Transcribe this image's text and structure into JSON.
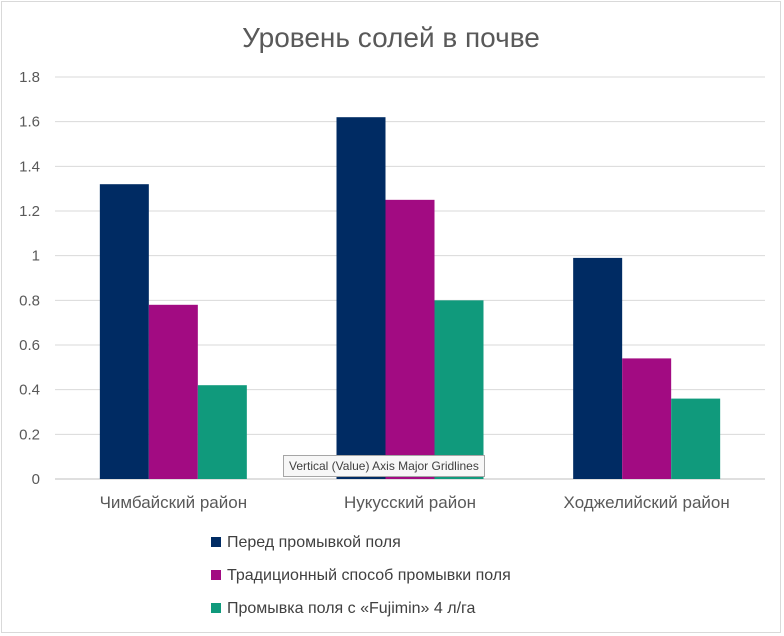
{
  "chart_data": {
    "type": "bar",
    "title": "Уровень солей в почве",
    "xlabel": "",
    "ylabel": "",
    "ylim": [
      0,
      1.8
    ],
    "yticks": [
      "0",
      "0.2",
      "0.4",
      "0.6",
      "0.8",
      "1",
      "1.2",
      "1.4",
      "1.6",
      "1.8"
    ],
    "grid": true,
    "legend_position": "bottom",
    "categories": [
      "Чимбайский район",
      "Нукусский район",
      "Ходжелийский район"
    ],
    "series": [
      {
        "name": "Перед промывкой поля",
        "color": "#002b63",
        "values": [
          1.32,
          1.62,
          0.99
        ]
      },
      {
        "name": "Традиционный способ промывки поля",
        "color": "#a20b82",
        "values": [
          0.78,
          1.25,
          0.54
        ]
      },
      {
        "name": "Промывка поля с «Fujimin» 4 л/га",
        "color": "#109a7c",
        "values": [
          0.42,
          0.8,
          0.36
        ]
      }
    ]
  },
  "tooltip": {
    "text": "Vertical (Value) Axis Major Gridlines"
  }
}
